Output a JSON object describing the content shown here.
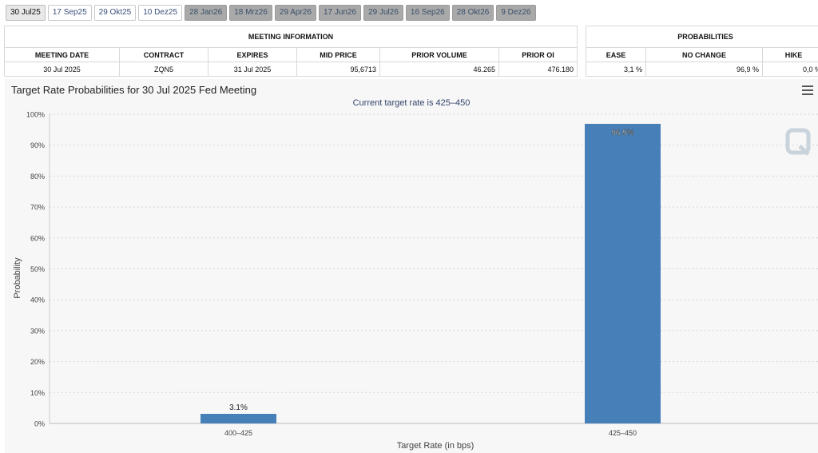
{
  "tabs": [
    {
      "label": "30 Jul25",
      "state": "active"
    },
    {
      "label": "17 Sep25",
      "state": "normal"
    },
    {
      "label": "29 Okt25",
      "state": "normal"
    },
    {
      "label": "10 Dez25",
      "state": "normal"
    },
    {
      "label": "28 Jan26",
      "state": "disabled"
    },
    {
      "label": "18 Mrz26",
      "state": "disabled"
    },
    {
      "label": "29 Apr26",
      "state": "disabled"
    },
    {
      "label": "17 Jun26",
      "state": "disabled"
    },
    {
      "label": "29 Jul26",
      "state": "disabled"
    },
    {
      "label": "16 Sep26",
      "state": "disabled"
    },
    {
      "label": "28 Okt26",
      "state": "disabled"
    },
    {
      "label": "9 Dez26",
      "state": "disabled"
    }
  ],
  "meeting_info": {
    "heading": "MEETING INFORMATION",
    "columns": [
      "MEETING DATE",
      "CONTRACT",
      "EXPIRES",
      "MID PRICE",
      "PRIOR VOLUME",
      "PRIOR OI"
    ],
    "row": [
      "30 Jul 2025",
      "ZQN5",
      "31 Jul 2025",
      "95,6713",
      "46.265",
      "476.180"
    ]
  },
  "probabilities": {
    "heading": "PROBABILITIES",
    "columns": [
      "EASE",
      "NO CHANGE",
      "HIKE"
    ],
    "row": [
      "3,1 %",
      "96,9 %",
      "0,0 %"
    ]
  },
  "chart": {
    "title": "Target Rate Probabilities for 30 Jul 2025 Fed Meeting",
    "subtitle": "Current target rate is 425–450",
    "menu_icon": "hamburger-menu-icon",
    "watermark_icon": "q-logo-icon"
  },
  "chart_data": {
    "type": "bar",
    "categories": [
      "400–425",
      "425–450"
    ],
    "values": [
      3.1,
      96.9
    ],
    "value_labels": [
      "3.1%",
      "96.9%"
    ],
    "xlabel": "Target Rate (in bps)",
    "ylabel": "Probability",
    "ylim": [
      0,
      100
    ],
    "yticks": [
      "0%",
      "10%",
      "20%",
      "30%",
      "40%",
      "50%",
      "60%",
      "70%",
      "80%",
      "90%",
      "100%"
    ],
    "bar_color": "#4780b9",
    "grid": true
  }
}
